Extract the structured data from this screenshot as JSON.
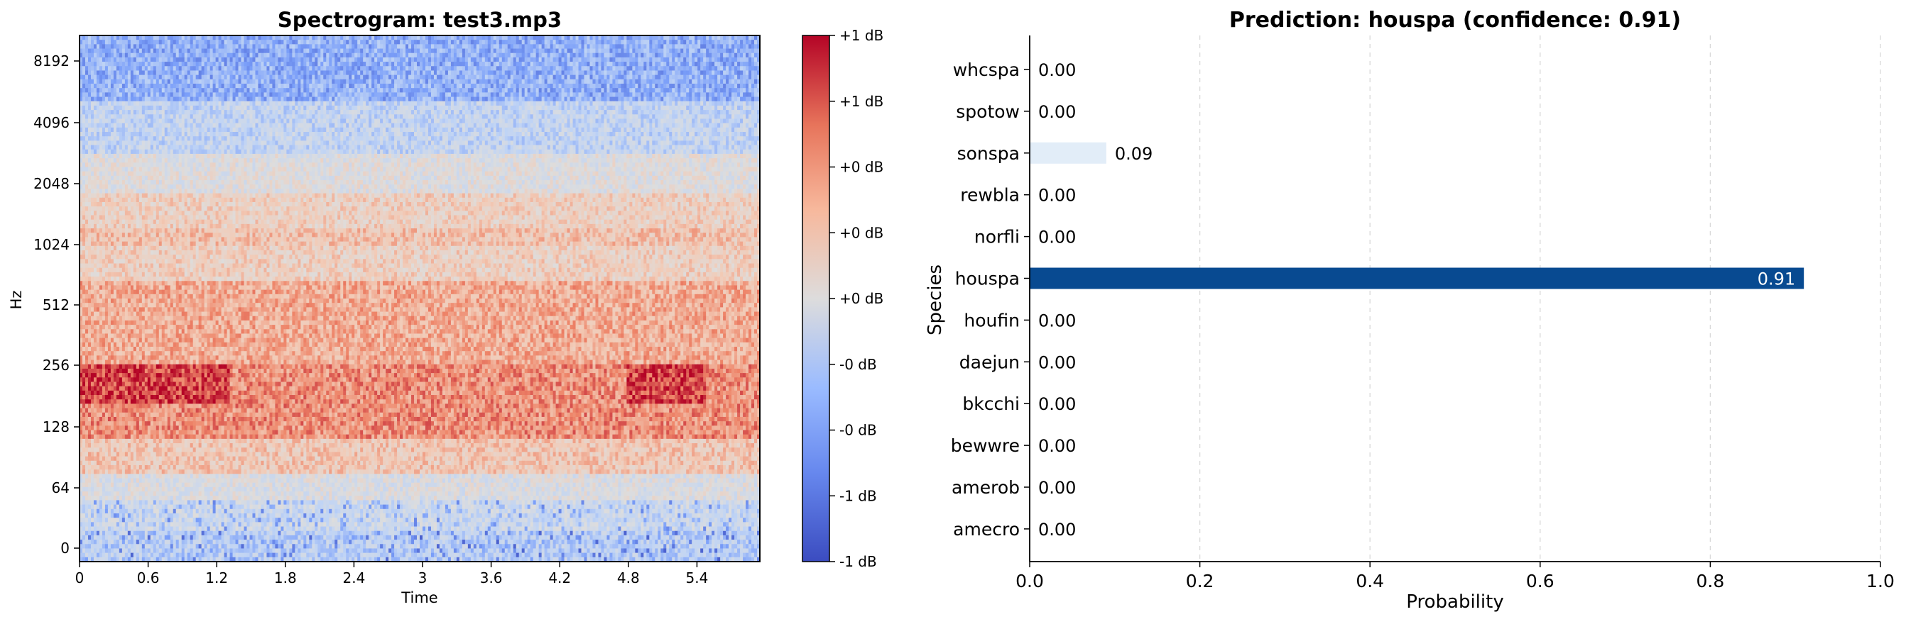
{
  "chart_data": [
    {
      "type": "heatmap",
      "title": "Spectrogram: test3.mp3",
      "xlabel": "Time",
      "ylabel": "Hz",
      "x_ticks": [
        "0",
        "0.6",
        "1.2",
        "1.8",
        "2.4",
        "3",
        "3.6",
        "4.2",
        "4.8",
        "5.4"
      ],
      "y_ticks": [
        "0",
        "64",
        "128",
        "256",
        "512",
        "1024",
        "2048",
        "4096",
        "8192"
      ],
      "colorbar_ticks": [
        "+1 dB",
        "+1 dB",
        "+0 dB",
        "+0 dB",
        "+0 dB",
        "-0 dB",
        "-0 dB",
        "-1 dB",
        "-1 dB"
      ],
      "colormap": [
        "#3b4cc0",
        "#7b9ff9",
        "#c0d4f5",
        "#dddddd",
        "#f2cbb7",
        "#ee8468",
        "#b40426"
      ],
      "xlim": [
        0,
        5.95
      ]
    },
    {
      "type": "bar",
      "orientation": "horizontal",
      "title": "Prediction: houspa (confidence: 0.91)",
      "xlabel": "Probability",
      "ylabel": "Species",
      "xlim": [
        0,
        1
      ],
      "x_ticks": [
        "0.0",
        "0.2",
        "0.4",
        "0.6",
        "0.8",
        "1.0"
      ],
      "categories": [
        "whcspa",
        "spotow",
        "sonspa",
        "rewbla",
        "norfli",
        "houspa",
        "houfin",
        "daejun",
        "bkcchi",
        "bewwre",
        "amerob",
        "amecro"
      ],
      "values": [
        0.0,
        0.0,
        0.09,
        0.0,
        0.0,
        0.91,
        0.0,
        0.0,
        0.0,
        0.0,
        0.0,
        0.0
      ],
      "labels": [
        "0.00",
        "0.00",
        "0.09",
        "0.00",
        "0.00",
        "0.91",
        "0.00",
        "0.00",
        "0.00",
        "0.00",
        "0.00",
        "0.00"
      ],
      "bar_colors": [
        "#f7fbff",
        "#f7fbff",
        "#e2edf8",
        "#f7fbff",
        "#f7fbff",
        "#084a91",
        "#f7fbff",
        "#f7fbff",
        "#f7fbff",
        "#f7fbff",
        "#f7fbff",
        "#f7fbff"
      ],
      "grid": "x-dashed"
    }
  ]
}
